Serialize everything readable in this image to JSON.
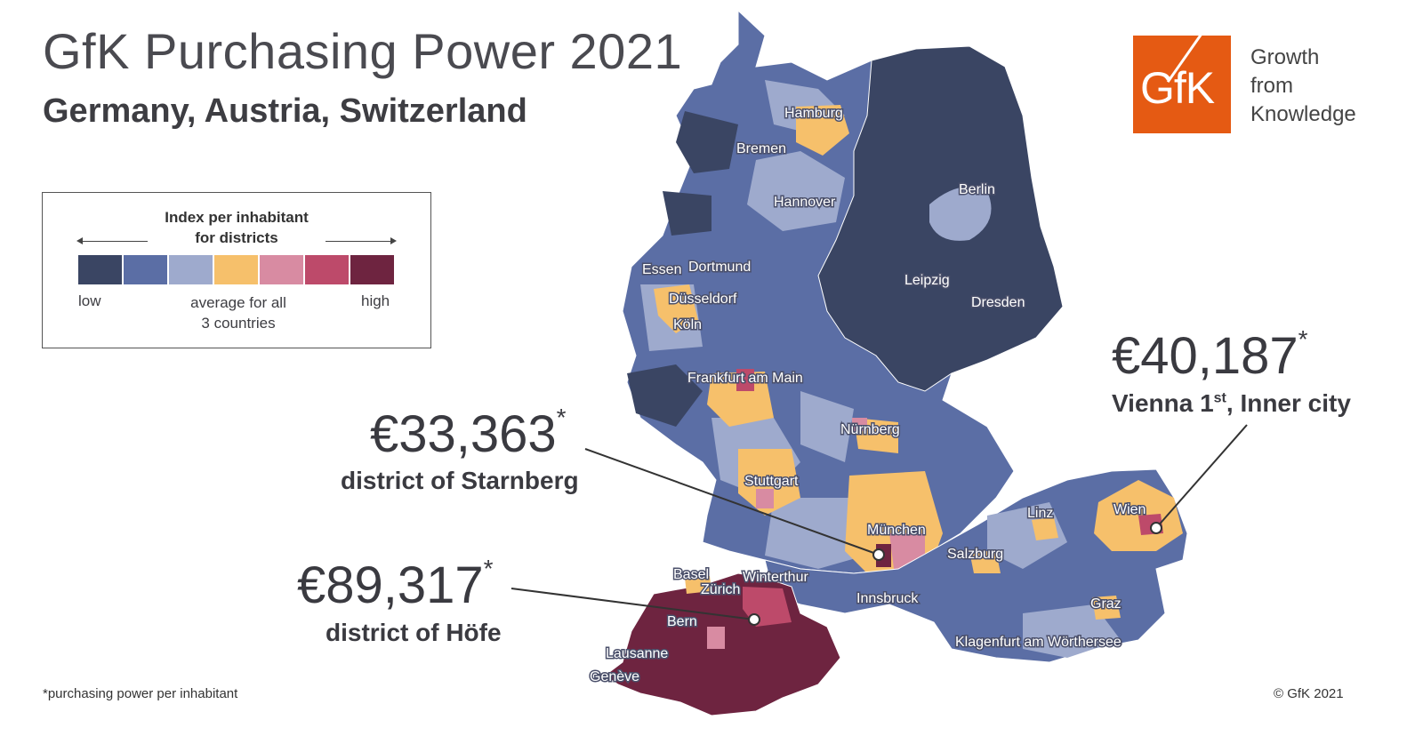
{
  "title": "GfK Purchasing Power 2021",
  "subtitle": "Germany, Austria, Switzerland",
  "legend": {
    "title_line1": "Index per inhabitant",
    "title_line2": "for districts",
    "low": "low",
    "average_line1": "average for all",
    "average_line2": "3 countries",
    "high": "high",
    "colors": [
      "#3a4563",
      "#5b6ea5",
      "#9eaacd",
      "#f6c06b",
      "#d88ba2",
      "#bd4a6a",
      "#6e2440"
    ]
  },
  "logo": {
    "text": "GfK",
    "tagline_line1": "Growth",
    "tagline_line2": "from",
    "tagline_line3": "Knowledge",
    "color": "#e55a13"
  },
  "callouts": {
    "vienna": {
      "value": "€40,187",
      "star": "*",
      "label_pre": "Vienna  1",
      "label_sup": "st",
      "label_post": ", Inner city"
    },
    "starnberg": {
      "value": "€33,363",
      "star": "*",
      "label": "district of Starnberg"
    },
    "hoefe": {
      "value": "€89,317",
      "star": "*",
      "label": "district of Höfe"
    }
  },
  "cities": {
    "hamburg": "Hamburg",
    "bremen": "Bremen",
    "hannover": "Hannover",
    "berlin": "Berlin",
    "essen": "Essen",
    "dortmund": "Dortmund",
    "duesseldorf": "Düsseldorf",
    "koeln": "Köln",
    "leipzig": "Leipzig",
    "dresden": "Dresden",
    "frankfurt": "Frankfurt am Main",
    "nuernberg": "Nürnberg",
    "stuttgart": "Stuttgart",
    "muenchen": "München",
    "linz": "Linz",
    "wien": "Wien",
    "salzburg": "Salzburg",
    "basel": "Basel",
    "winterthur": "Winterthur",
    "zuerich": "Zürich",
    "innsbruck": "Innsbruck",
    "bern": "Bern",
    "graz": "Graz",
    "klagenfurt": "Klagenfurt am Wörthersee",
    "lausanne": "Lausanne",
    "geneve": "Genève"
  },
  "footnote": "*purchasing power per inhabitant",
  "copyright": "© GfK 2021"
}
